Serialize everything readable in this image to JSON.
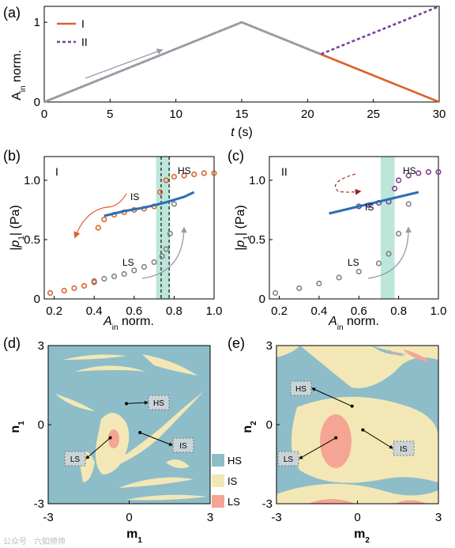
{
  "figure": {
    "watermark": "公众号 · 六如帅帅"
  },
  "chart_data": [
    {
      "panel": "(a)",
      "type": "line",
      "xlabel": "t (s)",
      "ylabel": "A_in norm.",
      "xlim": [
        0,
        30
      ],
      "ylim": [
        0,
        1.2
      ],
      "xticks": [
        0,
        5,
        10,
        15,
        20,
        25,
        30
      ],
      "yticks": [
        0,
        1
      ],
      "legend": {
        "position": "top-left",
        "entries": [
          "I",
          "II"
        ]
      },
      "series": [
        {
          "name": "I",
          "x": [
            0,
            15,
            30
          ],
          "y": [
            0,
            1,
            0
          ],
          "color": "#d9622b",
          "style": "solid"
        },
        {
          "name": "II",
          "x": [
            0,
            15,
            21,
            30
          ],
          "y": [
            0,
            1,
            0.6,
            1.2
          ],
          "color": "#7b3f98",
          "style": "dashed"
        }
      ],
      "common_ramp": {
        "x": [
          0,
          15,
          21
        ],
        "y": [
          0,
          1,
          0.6
        ],
        "color": "#9b9aa8"
      }
    },
    {
      "panel": "(b)",
      "label": "I",
      "type": "scatter",
      "xlabel": "A_in norm.",
      "ylabel": "|p_1| (Pa)",
      "xlim": [
        0.15,
        1.0
      ],
      "ylim": [
        0,
        1.2
      ],
      "xticks": [
        0.2,
        0.4,
        0.6,
        0.8,
        1.0
      ],
      "yticks": [
        0,
        0.5,
        1.0
      ],
      "annotations": [
        "HS",
        "IS",
        "LS"
      ],
      "shaded_band": [
        0.71,
        0.78
      ],
      "dashed_lines": [
        0.735,
        0.775
      ],
      "series": [
        {
          "name": "LS sweep",
          "color": "#808080",
          "x": [
            0.4,
            0.45,
            0.5,
            0.55,
            0.6,
            0.65,
            0.7,
            0.74,
            0.76,
            0.78,
            0.8
          ],
          "y": [
            0.15,
            0.17,
            0.19,
            0.21,
            0.24,
            0.27,
            0.31,
            0.36,
            0.42,
            0.55,
            0.8
          ]
        },
        {
          "name": "upper branch",
          "color": "#d9622b",
          "x": [
            0.18,
            0.25,
            0.3,
            0.35,
            0.4,
            0.42,
            0.45,
            0.5,
            0.55,
            0.6,
            0.65,
            0.7,
            0.73,
            0.76,
            0.8,
            0.85,
            0.9,
            0.95,
            1.0
          ],
          "y": [
            0.05,
            0.07,
            0.09,
            0.11,
            0.14,
            0.6,
            0.67,
            0.71,
            0.73,
            0.75,
            0.76,
            0.78,
            0.9,
            1.0,
            1.03,
            1.04,
            1.05,
            1.06,
            1.06
          ]
        },
        {
          "name": "model",
          "color": "#2a6fb3",
          "x": [
            0.45,
            0.55,
            0.65,
            0.75,
            0.85,
            0.9
          ],
          "y": [
            0.7,
            0.74,
            0.77,
            0.81,
            0.86,
            0.9
          ]
        }
      ]
    },
    {
      "panel": "(c)",
      "label": "II",
      "type": "scatter",
      "xlabel": "A_in norm.",
      "ylabel": "|p_1| (Pa)",
      "xlim": [
        0.15,
        1.0
      ],
      "ylim": [
        0,
        1.2
      ],
      "xticks": [
        0.2,
        0.4,
        0.6,
        0.8,
        1.0
      ],
      "yticks": [
        0,
        0.5,
        1.0
      ],
      "annotations": [
        "HS",
        "IS",
        "LS"
      ],
      "shaded_band": [
        0.71,
        0.78
      ],
      "series": [
        {
          "name": "LS sweep",
          "color": "#808080",
          "x": [
            0.18,
            0.3,
            0.4,
            0.5,
            0.6,
            0.7,
            0.75,
            0.8,
            0.85
          ],
          "y": [
            0.05,
            0.09,
            0.13,
            0.18,
            0.23,
            0.3,
            0.38,
            0.55,
            0.8
          ]
        },
        {
          "name": "upper branch",
          "color": "#7b3f98",
          "x": [
            0.6,
            0.65,
            0.7,
            0.75,
            0.78,
            0.8,
            0.85,
            0.9,
            0.95,
            1.0
          ],
          "y": [
            0.78,
            0.79,
            0.81,
            0.82,
            0.93,
            1.0,
            1.04,
            1.06,
            1.07,
            1.07
          ]
        },
        {
          "name": "model",
          "color": "#2a6fb3",
          "x": [
            0.45,
            0.55,
            0.65,
            0.75,
            0.85,
            0.9
          ],
          "y": [
            0.72,
            0.76,
            0.8,
            0.84,
            0.88,
            0.9
          ]
        }
      ]
    },
    {
      "panel": "(d)",
      "type": "heatmap",
      "xlabel": "m_1",
      "ylabel": "n_1",
      "xlim": [
        -3,
        3
      ],
      "ylim": [
        -3,
        3
      ],
      "xticks": [
        -3,
        0,
        3
      ],
      "yticks": [
        -3,
        0,
        3
      ],
      "regions": [
        "HS",
        "IS",
        "LS"
      ],
      "legend": {
        "position": "right",
        "entries": [
          {
            "label": "HS",
            "color": "#8ebdca"
          },
          {
            "label": "IS",
            "color": "#f3e8b5"
          },
          {
            "label": "LS",
            "color": "#f4a593"
          }
        ]
      },
      "markers": [
        {
          "label": "HS",
          "x": -0.1,
          "y": 0.8
        },
        {
          "label": "IS",
          "x": 0.4,
          "y": -0.3
        },
        {
          "label": "LS",
          "x": -0.7,
          "y": -0.5
        }
      ]
    },
    {
      "panel": "(e)",
      "type": "heatmap",
      "xlabel": "m_2",
      "ylabel": "n_2",
      "xlim": [
        -3,
        3
      ],
      "ylim": [
        -3,
        3
      ],
      "xticks": [
        -3,
        0,
        3
      ],
      "yticks": [
        -3,
        0,
        3
      ],
      "regions": [
        "HS",
        "IS",
        "LS"
      ],
      "markers": [
        {
          "label": "HS",
          "x": -0.2,
          "y": 0.7
        },
        {
          "label": "IS",
          "x": 0.2,
          "y": -0.2
        },
        {
          "label": "LS",
          "x": -0.8,
          "y": -0.5
        }
      ]
    }
  ]
}
